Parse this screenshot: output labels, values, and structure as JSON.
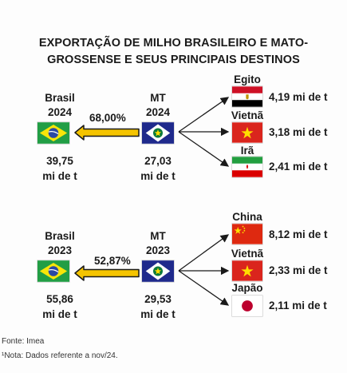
{
  "title": {
    "line1": "EXPORTAÇÃO DE MILHO BRASILEIRO E MATO-",
    "line2": "GROSSENSE E SEUS PRINCIPAIS DESTINOS"
  },
  "block2024": {
    "brasil_label": "Brasil",
    "brasil_year": "2024",
    "brasil_value_line1": "39,75",
    "brasil_value_line2": "mi de t",
    "share": "68,00%",
    "mt_label": "MT",
    "mt_year": "2024",
    "mt_value_line1": "27,03",
    "mt_value_line2": "mi de t",
    "destinations": [
      {
        "country": "Egito",
        "value": "4,19 mi de t",
        "flag": "egypt-flag"
      },
      {
        "country": "Vietnã",
        "value": "3,18 mi de t",
        "flag": "vietnam-flag"
      },
      {
        "country": "Irã",
        "value": "2,41 mi de t",
        "flag": "iran-flag"
      }
    ]
  },
  "block2023": {
    "brasil_label": "Brasil",
    "brasil_year": "2023",
    "brasil_value_line1": "55,86",
    "brasil_value_line2": "mi de t",
    "share": "52,87%",
    "mt_label": "MT",
    "mt_year": "2023",
    "mt_value_line1": "29,53",
    "mt_value_line2": "mi de t",
    "destinations": [
      {
        "country": "China",
        "value": "8,12 mi de t",
        "flag": "china-flag"
      },
      {
        "country": "Vietnã",
        "value": "2,33 mi de t",
        "flag": "vietnam-flag"
      },
      {
        "country": "Japão",
        "value": "2,11 mi de t",
        "flag": "japan-flag"
      }
    ]
  },
  "footer": {
    "source": "Fonte: Imea",
    "note": "¹Nota: Dados referente a nov/24."
  },
  "colors": {
    "arrow_fill": "#f5c400",
    "arrow_stroke": "#1a1a1a",
    "brazil_green": "#229e45",
    "brazil_yellow": "#f8e509",
    "brazil_blue": "#2b49a3",
    "mt_blue": "#1f2a8c",
    "red": "#da251d",
    "star_yellow": "#ffde00"
  }
}
